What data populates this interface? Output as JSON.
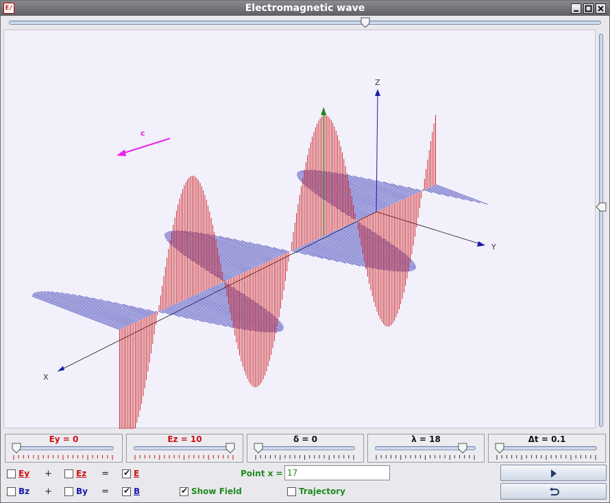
{
  "window": {
    "title": "Electromagnetic wave",
    "icon": "app-icon",
    "icon_text": "E/"
  },
  "sliders": {
    "time": {
      "level": 0.61
    },
    "view_vertical": {
      "level": 0.44
    },
    "ey": {
      "label": "Ey = 0",
      "level": 0.0
    },
    "ez": {
      "label": "Ez = 10",
      "level": 1.0
    },
    "delta": {
      "label": "δ = 0",
      "level": 0.0
    },
    "lambda": {
      "label": "λ = 18",
      "level": 0.9
    },
    "dt": {
      "label": "Δt = 0.1",
      "level": 0.0
    }
  },
  "plot": {
    "axes": {
      "x": "X",
      "y": "Y",
      "z": "Z"
    },
    "velocity_label": "c",
    "colors": {
      "e_field": "#cc1111",
      "b_field": "#1a1aa8",
      "velocity": "#ee22ee",
      "point": "#1f8a1f"
    }
  },
  "controls": {
    "row1": {
      "a": "Ey",
      "plus": "+",
      "b": "Ez",
      "equals": "=",
      "result": "E",
      "a_checked": false,
      "b_checked": false,
      "result_checked": true
    },
    "row2": {
      "a": "Bz",
      "plus": "+",
      "b": "By",
      "equals": "=",
      "result": "B",
      "a_checked": false,
      "b_checked": false,
      "result_checked": true
    },
    "point_label": "Point x =",
    "point_value": "17",
    "show_field": {
      "label": "Show Field",
      "checked": true
    },
    "trajectory": {
      "label": "Trajectory",
      "checked": false
    },
    "play_button": "play-icon",
    "reset_button": "reset-icon"
  }
}
